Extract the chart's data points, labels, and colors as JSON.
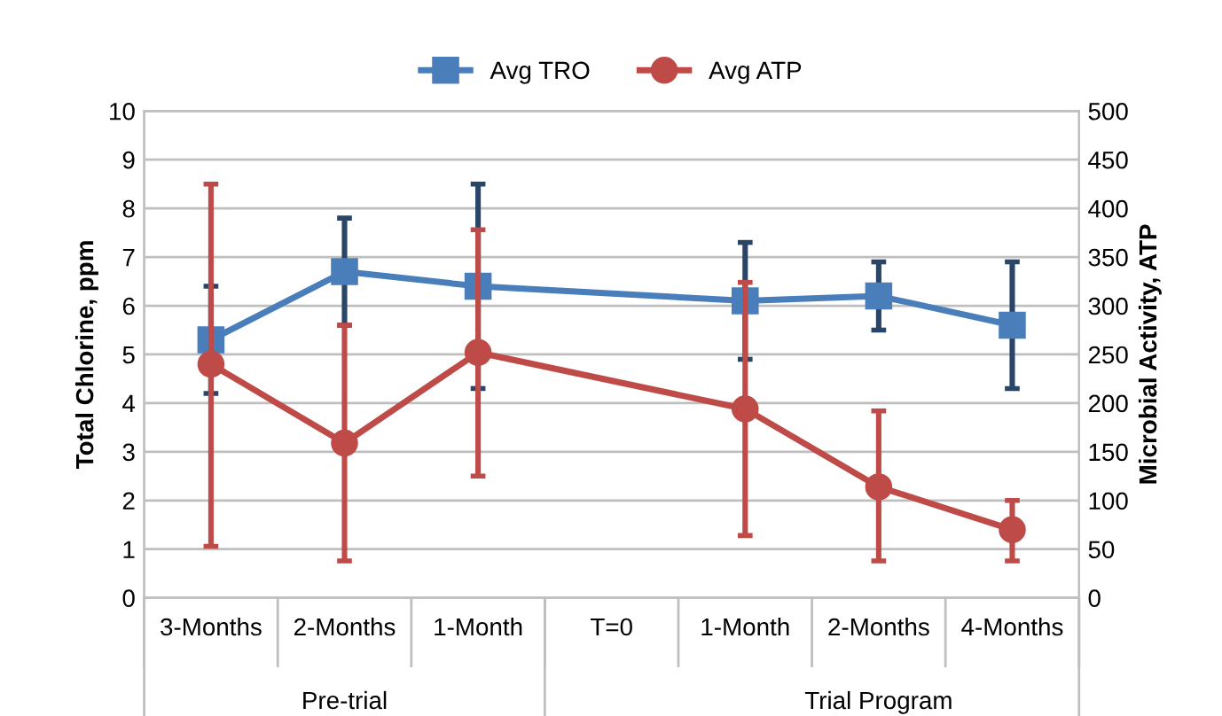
{
  "chart_data": {
    "type": "line",
    "categories": [
      "3-Months",
      "2-Months",
      "1-Month",
      "T=0",
      "1-Month",
      "2-Months",
      "4-Months"
    ],
    "series": [
      {
        "name": "Avg TRO",
        "color": "#4a7ebb",
        "marker": "square",
        "values": [
          5.3,
          6.7,
          6.4,
          null,
          6.1,
          6.2,
          5.6
        ],
        "errors": [
          [
            4.2,
            6.4
          ],
          [
            5.6,
            7.8
          ],
          [
            4.3,
            8.5
          ],
          null,
          [
            4.9,
            7.3
          ],
          [
            5.5,
            6.9
          ],
          [
            4.3,
            6.9
          ]
        ]
      },
      {
        "name": "Avg ATP",
        "color": "#be4b48",
        "marker": "circle",
        "axis": "y2",
        "values": [
          240,
          159,
          252,
          null,
          194,
          114,
          70
        ],
        "errors": [
          [
            53,
            425
          ],
          [
            38,
            280
          ],
          [
            125,
            378
          ],
          null,
          [
            64,
            324
          ],
          [
            38,
            192
          ],
          [
            38,
            100
          ]
        ]
      }
    ],
    "ylabel": "Total Chlorine, ppm",
    "y2label": "Microbial Activity, ATP",
    "ylim": [
      0,
      10
    ],
    "yticks": [
      0,
      1,
      2,
      3,
      4,
      5,
      6,
      7,
      8,
      9,
      10
    ],
    "y2lim": [
      0,
      500
    ],
    "y2ticks": [
      0,
      50,
      100,
      150,
      200,
      250,
      300,
      350,
      400,
      450,
      500
    ],
    "annotations": [
      "Pre-trial",
      "Trial Program"
    ],
    "grid": "y",
    "legend": "top",
    "line_style": "solid"
  }
}
